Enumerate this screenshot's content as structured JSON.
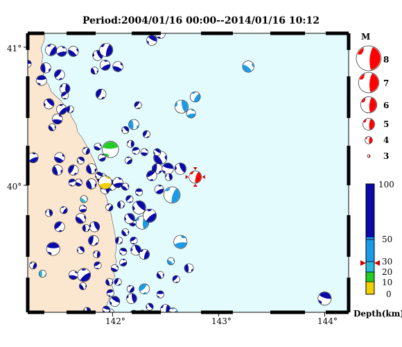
{
  "title": "Period:2004/01/16 00:00--2014/01/16 10:12",
  "lat_labels": [
    "41°",
    "40°"
  ],
  "lon_labels": [
    "142°",
    "143°",
    "144°"
  ],
  "colors": {
    "sea": "#e3fbfd",
    "land": "#fbe7cf",
    "deep": "#0a0aa8",
    "mid": "#1a9be8",
    "shallow1": "#29b8d8",
    "shallow2": "#22cc22",
    "shallow3": "#f0d000",
    "main_event": "#ff0000"
  },
  "magnitude_legend": {
    "title": "M",
    "labels": [
      "8",
      "7",
      "6",
      "5",
      "4",
      "3"
    ]
  },
  "depth_scale": {
    "labels": [
      "100",
      "50",
      "30",
      "20",
      "10",
      "0"
    ],
    "unit_label": "Depth(km)",
    "marked_depth": 30
  },
  "main_event": {
    "lon": 142.78,
    "lat": 40.06,
    "magnitude": 5.5
  },
  "events": [
    [
      141.12,
      41.08,
      4.0,
      60
    ],
    [
      141.42,
      40.98,
      4.2,
      70
    ],
    [
      141.52,
      40.97,
      4.0,
      70
    ],
    [
      141.63,
      40.97,
      4.0,
      70
    ],
    [
      141.37,
      40.85,
      4.0,
      70
    ],
    [
      141.5,
      40.8,
      4.0,
      70
    ],
    [
      141.33,
      40.76,
      4.0,
      70
    ],
    [
      141.4,
      40.59,
      4.0,
      70
    ],
    [
      141.55,
      40.7,
      4.0,
      70
    ],
    [
      141.52,
      40.55,
      4.0,
      70
    ],
    [
      141.48,
      40.48,
      4.0,
      70
    ],
    [
      141.43,
      40.42,
      3.5,
      70
    ],
    [
      141.6,
      40.55,
      3.5,
      70
    ],
    [
      141.55,
      40.65,
      3.5,
      70
    ],
    [
      141.2,
      40.88,
      3.5,
      70
    ],
    [
      141.86,
      40.94,
      4.0,
      70
    ],
    [
      141.94,
      40.98,
      4.5,
      80
    ],
    [
      141.93,
      40.87,
      4.0,
      70
    ],
    [
      142.05,
      40.86,
      4.0,
      70
    ],
    [
      141.83,
      40.83,
      3.5,
      70
    ],
    [
      141.89,
      40.66,
      4.0,
      70
    ],
    [
      142.45,
      41.1,
      4.0,
      60
    ],
    [
      142.37,
      41.05,
      4.0,
      60
    ],
    [
      142.65,
      40.57,
      4.5,
      40
    ],
    [
      142.78,
      40.64,
      4.0,
      40
    ],
    [
      142.74,
      40.52,
      3.8,
      40
    ],
    [
      143.28,
      40.86,
      4.2,
      40
    ],
    [
      142.2,
      40.44,
      4.0,
      50
    ],
    [
      142.24,
      40.58,
      3.5,
      60
    ],
    [
      141.98,
      40.26,
      5.0,
      18
    ],
    [
      142.12,
      40.4,
      3.5,
      70
    ],
    [
      142.17,
      40.3,
      3.5,
      70
    ],
    [
      142.15,
      40.18,
      3.5,
      70
    ],
    [
      142.3,
      40.24,
      3.5,
      70
    ],
    [
      142.45,
      40.2,
      4.5,
      55
    ],
    [
      142.42,
      40.12,
      4.0,
      55
    ],
    [
      142.37,
      40.07,
      4.0,
      55
    ],
    [
      142.52,
      40.12,
      4.2,
      55
    ],
    [
      142.64,
      40.12,
      4.2,
      60
    ],
    [
      142.56,
      39.93,
      5.0,
      50
    ],
    [
      142.44,
      39.97,
      3.8,
      60
    ],
    [
      141.68,
      40.02,
      3.5,
      70
    ],
    [
      141.8,
      40.01,
      4.0,
      70
    ],
    [
      141.9,
      40.05,
      4.0,
      70
    ],
    [
      141.99,
      40.0,
      4.0,
      60
    ],
    [
      141.87,
      40.07,
      3.5,
      70
    ],
    [
      141.93,
      39.97,
      3.8,
      70
    ],
    [
      141.97,
      39.84,
      3.5,
      70
    ],
    [
      142.05,
      40.02,
      4.0,
      60
    ],
    [
      142.12,
      39.99,
      3.5,
      60
    ],
    [
      142.08,
      39.86,
      3.5,
      70
    ],
    [
      142.16,
      39.9,
      3.5,
      70
    ],
    [
      142.25,
      39.95,
      3.5,
      55
    ],
    [
      142.25,
      39.84,
      4.5,
      55
    ],
    [
      142.28,
      39.73,
      4.5,
      45
    ],
    [
      142.35,
      39.78,
      4.5,
      55
    ],
    [
      142.19,
      39.73,
      3.5,
      70
    ],
    [
      142.12,
      39.66,
      3.5,
      70
    ],
    [
      142.06,
      39.6,
      3.5,
      70
    ],
    [
      142.2,
      39.6,
      3.5,
      70
    ],
    [
      142.1,
      39.52,
      3.5,
      70
    ],
    [
      142.22,
      39.53,
      4.0,
      70
    ],
    [
      142.3,
      39.5,
      4.0,
      70
    ],
    [
      142.1,
      39.44,
      3.5,
      70
    ],
    [
      142.02,
      39.4,
      3.5,
      70
    ],
    [
      141.97,
      39.3,
      3.5,
      70
    ],
    [
      142.05,
      39.3,
      3.5,
      70
    ],
    [
      141.98,
      39.22,
      3.5,
      70
    ],
    [
      142.02,
      39.16,
      4.0,
      70
    ],
    [
      142.18,
      39.18,
      4.0,
      70
    ],
    [
      142.17,
      39.25,
      3.5,
      70
    ],
    [
      142.64,
      39.59,
      4.5,
      50
    ],
    [
      142.55,
      39.45,
      3.5,
      38
    ],
    [
      142.72,
      39.4,
      3.8,
      70
    ],
    [
      142.6,
      39.32,
      3.5,
      70
    ],
    [
      142.45,
      39.21,
      3.5,
      70
    ],
    [
      142.35,
      39.12,
      3.5,
      70
    ],
    [
      142.5,
      39.1,
      4.0,
      55
    ],
    [
      142.57,
      39.08,
      3.8,
      40
    ],
    [
      142.28,
      39.07,
      3.5,
      55
    ],
    [
      142.45,
      39.35,
      3.5,
      70
    ],
    [
      141.98,
      39.08,
      3.5,
      70
    ],
    [
      142.2,
      39.07,
      3.5,
      70
    ],
    [
      141.94,
      39.1,
      3.5,
      70
    ],
    [
      141.76,
      39.09,
      3.5,
      70
    ],
    [
      141.25,
      39.42,
      3.5,
      70
    ],
    [
      141.25,
      40.2,
      4.0,
      70
    ],
    [
      141.5,
      40.2,
      4.0,
      70
    ],
    [
      141.48,
      40.11,
      4.0,
      70
    ],
    [
      141.63,
      40.11,
      4.0,
      70
    ],
    [
      141.62,
      40.02,
      3.5,
      70
    ],
    [
      141.7,
      40.18,
      3.5,
      70
    ],
    [
      141.4,
      39.8,
      3.5,
      70
    ],
    [
      141.54,
      39.82,
      3.5,
      70
    ],
    [
      141.72,
      39.83,
      3.5,
      70
    ],
    [
      141.7,
      39.76,
      4.0,
      70
    ],
    [
      141.75,
      39.69,
      3.5,
      70
    ],
    [
      141.5,
      39.7,
      4.0,
      70
    ],
    [
      141.44,
      39.54,
      4.5,
      70
    ],
    [
      141.7,
      39.53,
      3.5,
      70
    ],
    [
      141.85,
      39.5,
      3.5,
      70
    ],
    [
      141.73,
      39.35,
      4.5,
      70
    ],
    [
      141.63,
      39.35,
      3.8,
      70
    ],
    [
      141.72,
      39.27,
      3.5,
      70
    ],
    [
      141.82,
      39.6,
      4.0,
      70
    ],
    [
      141.86,
      39.42,
      3.5,
      70
    ],
    [
      144.0,
      39.18,
      4.5,
      70
    ],
    [
      141.83,
      39.7,
      4.0,
      70
    ],
    [
      141.75,
      40.25,
      3.5,
      70
    ],
    [
      141.9,
      40.2,
      3.5,
      70
    ],
    [
      141.86,
      40.28,
      3.5,
      70
    ],
    [
      141.8,
      40.12,
      4.0,
      70
    ],
    [
      142.32,
      40.37,
      3.5,
      70
    ],
    [
      142.22,
      40.25,
      3.5,
      70
    ],
    [
      142.42,
      40.24,
      3.5,
      70
    ],
    [
      142.53,
      40.06,
      3.5,
      70
    ]
  ],
  "extra_events": [
    [
      141.1,
      40.3,
      3.5,
      8
    ],
    [
      141.93,
      40.02,
      4.5,
      8
    ],
    [
      141.73,
      39.9,
      3.5,
      22
    ],
    [
      141.34,
      39.36,
      3.5,
      22
    ],
    [
      142.3,
      39.25,
      4.0,
      35
    ],
    [
      142.53,
      39.05,
      4.0,
      36
    ],
    [
      142.16,
      39.76,
      4.0,
      55
    ]
  ]
}
